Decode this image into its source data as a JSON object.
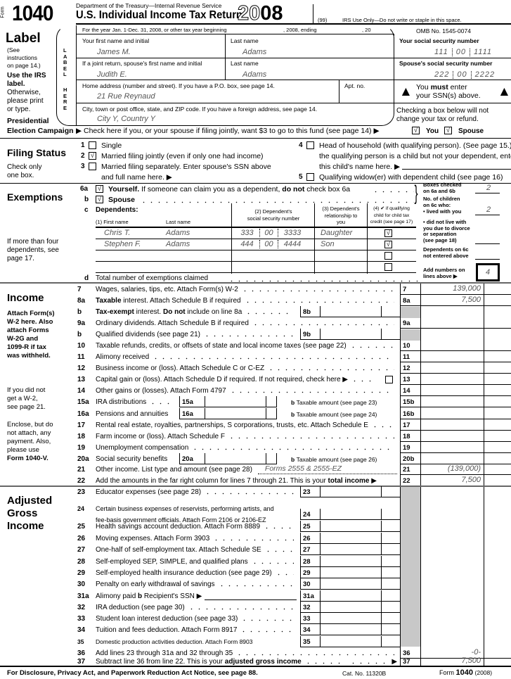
{
  "header": {
    "form_word": "Form",
    "form_number": "1040",
    "department": "Department of the Treasury—Internal Revenue Service",
    "title": "U.S. Individual Income Tax Return",
    "year_prefix": "20",
    "year_suffix": "08",
    "code": "(99)",
    "irs_use": "IRS Use Only—Do not write or staple in this space."
  },
  "label": {
    "heading": "Label",
    "note1": "(See",
    "note2": "instructions",
    "note3": "on page 14.)",
    "use1": "Use the IRS",
    "use2": "label.",
    "other1": "Otherwise,",
    "other2": "please print",
    "other3": "or type.",
    "vertical_label": "LABEL",
    "vertical_here": "HERE",
    "tax_year": "For the year Jan. 1-Dec. 31, 2008, or other tax year beginning",
    "tax_year_mid": ", 2008, ending",
    "tax_year_end": ", 20",
    "omb": "OMB No. 1545-0074",
    "first_name_label": "Your first name and initial",
    "first_name": "James M.",
    "last_name_label": "Last name",
    "last_name": "Adams",
    "spouse_first_label": "If a joint return, spouse's first name and initial",
    "spouse_first": "Judith E.",
    "spouse_last_label": "Last name",
    "spouse_last": "Adams",
    "address_label": "Home address (number and street). If you have a P.O. box, see page 14.",
    "address": "21 Rue Reynaud",
    "apt_label": "Apt. no.",
    "city_label": "City, town or post office, state, and ZIP code. If you have a foreign address, see page 14.",
    "city": "City Y, Country Y"
  },
  "ssn": {
    "your_label": "Your social security number",
    "your": [
      "111",
      "00",
      "1111"
    ],
    "spouse_label": "Spouse's social security number",
    "spouse": [
      "222",
      "00",
      "2222"
    ],
    "must_pre": "You ",
    "must_bold": "must",
    "must_post": " enter",
    "must_line2": "your SSN(s) above.",
    "checking1": "Checking a box below will not",
    "checking2": "change your tax or refund."
  },
  "presidential": {
    "heading1": "Presidential",
    "heading2": "Election Campaign",
    "text": "▶  Check here if you, or your spouse if filing jointly, want $3 to go to this fund (see page 14) ▶",
    "you": "You",
    "spouse": "Spouse",
    "you_checked": true,
    "spouse_checked": true
  },
  "filing_status": {
    "heading": "Filing Status",
    "note1": "Check only",
    "note2": "one box.",
    "options": [
      {
        "num": "1",
        "text": "Single",
        "checked": false
      },
      {
        "num": "2",
        "text": "Married filing jointly (even if only one had income)",
        "checked": true
      },
      {
        "num": "3",
        "text": "Married filing separately. Enter spouse's SSN above",
        "text2": "and full name here. ▶",
        "checked": false
      },
      {
        "num": "4",
        "text": "Head of household (with qualifying person). (See page 15.) If",
        "text2": "the qualifying person is a child but not your dependent, enter",
        "text3": "this child's name here. ▶",
        "checked": false
      },
      {
        "num": "5",
        "text": "Qualifying widow(er) with dependent child (see page 16)",
        "checked": false
      }
    ]
  },
  "exemptions": {
    "heading": "Exemptions",
    "more1": "If more than four",
    "more2": "dependents, see",
    "more3": "page 17.",
    "line6a_num": "6a",
    "line6a_bold": "Yourself.",
    "line6a_text": " If someone can claim you as a dependent, ",
    "line6a_bold2": "do not",
    "line6a_text2": " check box 6a",
    "yourself_checked": true,
    "line6b_num": "b",
    "line6b_text": "Spouse",
    "spouse_checked": true,
    "line6c_num": "c",
    "dependents_label": "Dependents:",
    "col1a": "(1) First name",
    "col1b": "Last name",
    "col2a": "(2) Dependent's",
    "col2b": "social security number",
    "col3a": "(3) Dependent's",
    "col3b": "relationship to",
    "col3c": "you",
    "col4a": "(4) ✔ if qualifying",
    "col4b": "child for child tax",
    "col4c": "credit (see page 17)",
    "dependents": [
      {
        "first": "Chris T.",
        "last": "Adams",
        "ssn": [
          "333",
          "00",
          "3333"
        ],
        "relationship": "Daughter",
        "credit": true
      },
      {
        "first": "Stephen F.",
        "last": "Adams",
        "ssn": [
          "444",
          "00",
          "4444"
        ],
        "relationship": "Son",
        "credit": true
      },
      {
        "first": "",
        "last": "",
        "ssn": [
          "",
          "",
          ""
        ],
        "relationship": "",
        "credit": false
      },
      {
        "first": "",
        "last": "",
        "ssn": [
          "",
          "",
          ""
        ],
        "relationship": "",
        "credit": false
      }
    ],
    "line6d_num": "d",
    "line6d_text": "Total number of exemptions claimed",
    "boxes_checked1": "Boxes checked",
    "boxes_checked2": "on 6a and 6b",
    "boxes_checked_value": "2",
    "children1": "No. of children",
    "children2": "on 6c who:",
    "lived_with": "• lived with you",
    "lived_with_value": "2",
    "not_live1": "• did not live with",
    "not_live2": "you due to divorce",
    "not_live3": "or separation",
    "not_live4": "(see page 18)",
    "not_live_value": "",
    "not_entered1": "Dependents on 6c",
    "not_entered2": "not entered above",
    "not_entered_value": "",
    "add1": "Add numbers on",
    "add2": "lines above ▶",
    "total_value": "4"
  },
  "income": {
    "heading": "Income",
    "attach": [
      "Attach Form(s)",
      "W-2 here. Also",
      "attach Forms",
      "W-2G and",
      "1099-R if tax",
      "was withheld."
    ],
    "no_w2": [
      "If you did not",
      "get a W-2,",
      "see page 21."
    ],
    "enclose": [
      "Enclose, but do",
      "not attach, any",
      "payment. Also,",
      "please use"
    ],
    "enclose_bold": "Form 1040-V.",
    "lines": [
      {
        "num": "7",
        "segs": [
          {
            "t": "Wages, salaries, tips, etc. Attach Form(s) W-2"
          }
        ],
        "type": "R",
        "box": "7",
        "value": "139,000"
      },
      {
        "num": "8a",
        "segs": [
          {
            "b": "Taxable"
          },
          {
            "t": " interest. Attach Schedule B if required"
          }
        ],
        "type": "R",
        "box": "8a",
        "value": "7,500"
      },
      {
        "num": "b",
        "segs": [
          {
            "b": "Tax-exempt"
          },
          {
            "t": " interest. "
          },
          {
            "b": "Do not"
          },
          {
            "t": " include on line 8a"
          }
        ],
        "type": "M",
        "box": "8b",
        "value": ""
      },
      {
        "num": "9a",
        "segs": [
          {
            "t": "Ordinary dividends. Attach Schedule B if required"
          }
        ],
        "type": "R",
        "box": "9a",
        "value": ""
      },
      {
        "num": "b",
        "segs": [
          {
            "t": "Qualified dividends (see page 21)"
          }
        ],
        "type": "M",
        "box": "9b",
        "value": ""
      },
      {
        "num": "10",
        "segs": [
          {
            "t": "Taxable refunds, credits, or offsets of state and local income taxes (see page 22)"
          }
        ],
        "type": "R",
        "box": "10",
        "value": ""
      },
      {
        "num": "11",
        "segs": [
          {
            "t": "Alimony received"
          }
        ],
        "type": "R",
        "box": "11",
        "value": ""
      },
      {
        "num": "12",
        "segs": [
          {
            "t": "Business income or (loss). Attach Schedule C or C-EZ"
          }
        ],
        "type": "R",
        "box": "12",
        "value": ""
      },
      {
        "num": "13",
        "segs": [
          {
            "t": "Capital gain or (loss). Attach Schedule D if required. If not required, check here ▶"
          }
        ],
        "type": "R",
        "box": "13",
        "value": "",
        "checkbox": true
      },
      {
        "num": "14",
        "segs": [
          {
            "t": "Other gains or (losses). Attach Form 4797"
          }
        ],
        "type": "R",
        "box": "14",
        "value": ""
      },
      {
        "num": "15a",
        "segs": [
          {
            "t": "IRA distributions"
          }
        ],
        "type": "S",
        "sbox": "15a",
        "svalue": "",
        "btext": "Taxable amount (see page 23)",
        "box": "15b",
        "value": ""
      },
      {
        "num": "16a",
        "segs": [
          {
            "t": "Pensions and annuities"
          }
        ],
        "type": "S",
        "sbox": "16a",
        "svalue": "",
        "btext": "Taxable amount (see page 24)",
        "box": "16b",
        "value": ""
      },
      {
        "num": "17",
        "segs": [
          {
            "t": "Rental real estate, royalties, partnerships, S corporations, trusts, etc. Attach Schedule E"
          }
        ],
        "type": "R",
        "box": "17",
        "value": ""
      },
      {
        "num": "18",
        "segs": [
          {
            "t": "Farm income or (loss). Attach Schedule F"
          }
        ],
        "type": "R",
        "box": "18",
        "value": ""
      },
      {
        "num": "19",
        "segs": [
          {
            "t": "Unemployment compensation"
          }
        ],
        "type": "R",
        "box": "19",
        "value": ""
      },
      {
        "num": "20a",
        "segs": [
          {
            "t": "Social security benefits"
          }
        ],
        "type": "S",
        "sbox": "20a",
        "svalue": "",
        "btext": "Taxable amount (see page 26)",
        "box": "20b",
        "value": ""
      },
      {
        "num": "21",
        "segs": [
          {
            "t": "Other income. List type and amount (see page 28)"
          }
        ],
        "type": "R",
        "box": "21",
        "value": "(139,000)",
        "other": "Forms 2555 & 2555-EZ"
      },
      {
        "num": "22",
        "segs": [
          {
            "t": "Add the amounts in the far right column for lines 7 through 21. This is your "
          },
          {
            "b": "total income"
          },
          {
            "t": " ▶"
          }
        ],
        "type": "R",
        "box": "22",
        "value": "7,500",
        "noleader": true
      }
    ]
  },
  "agi": {
    "heading": [
      "Adjusted",
      "Gross",
      "Income"
    ],
    "lines": [
      {
        "num": "23",
        "segs": [
          {
            "t": "Educator expenses (see page 28)"
          }
        ],
        "type": "M",
        "box": "23",
        "value": ""
      },
      {
        "num": "24",
        "segs": [
          {
            "t": "Certain business expenses of reservists, performing artists, and"
          }
        ],
        "segs2": [
          {
            "t": "fee-basis government officials. Attach Form 2106 or 2106-EZ"
          }
        ],
        "type": "M",
        "box": "24",
        "value": ""
      },
      {
        "num": "25",
        "segs": [
          {
            "t": "Health savings account deduction. Attach Form 8889"
          }
        ],
        "type": "M",
        "box": "25",
        "value": ""
      },
      {
        "num": "26",
        "segs": [
          {
            "t": "Moving expenses. Attach Form 3903"
          }
        ],
        "type": "M",
        "box": "26",
        "value": ""
      },
      {
        "num": "27",
        "segs": [
          {
            "t": "One-half of self-employment tax. Attach Schedule SE"
          }
        ],
        "type": "M",
        "box": "27",
        "value": ""
      },
      {
        "num": "28",
        "segs": [
          {
            "t": "Self-employed SEP, SIMPLE, and qualified plans"
          }
        ],
        "type": "M",
        "box": "28",
        "value": ""
      },
      {
        "num": "29",
        "segs": [
          {
            "t": "Self-employed health insurance deduction (see page 29)"
          }
        ],
        "type": "M",
        "box": "29",
        "value": ""
      },
      {
        "num": "30",
        "segs": [
          {
            "t": "Penalty on early withdrawal of savings"
          }
        ],
        "type": "M",
        "box": "30",
        "value": ""
      },
      {
        "num": "31a",
        "segs": [
          {
            "t": "Alimony paid   "
          },
          {
            "b": "b"
          },
          {
            "t": " Recipient's SSN ▶"
          }
        ],
        "type": "M",
        "box": "31a",
        "value": "",
        "ssnline": true
      },
      {
        "num": "32",
        "segs": [
          {
            "t": "IRA deduction (see page 30)"
          }
        ],
        "type": "M",
        "box": "32",
        "value": ""
      },
      {
        "num": "33",
        "segs": [
          {
            "t": "Student loan interest deduction (see page 33)"
          }
        ],
        "type": "M",
        "box": "33",
        "value": ""
      },
      {
        "num": "34",
        "segs": [
          {
            "t": "Tuition and fees deduction. Attach Form 8917"
          }
        ],
        "type": "M",
        "box": "34",
        "value": ""
      },
      {
        "num": "35",
        "segs": [
          {
            "t": "Domestic production activities deduction. Attach Form 8903"
          }
        ],
        "type": "M",
        "box": "35",
        "value": "",
        "noleader": true
      },
      {
        "num": "36",
        "segs": [
          {
            "t": "Add lines 23 through 31a and 32 through 35"
          }
        ],
        "type": "R",
        "box": "36",
        "value": "-0-"
      },
      {
        "num": "37",
        "segs": [
          {
            "t": "Subtract line 36 from line 22. This is your "
          },
          {
            "b": "adjusted gross income"
          }
        ],
        "type": "R",
        "box": "37",
        "value": "7,500",
        "arrow": "▶"
      }
    ]
  },
  "footer": {
    "disclosure": "For Disclosure, Privacy Act, and Paperwork Reduction Act Notice, see page 88.",
    "cat": "Cat. No. 11320B",
    "form_word": "Form",
    "form_number": "1040",
    "year": "(2008)"
  }
}
